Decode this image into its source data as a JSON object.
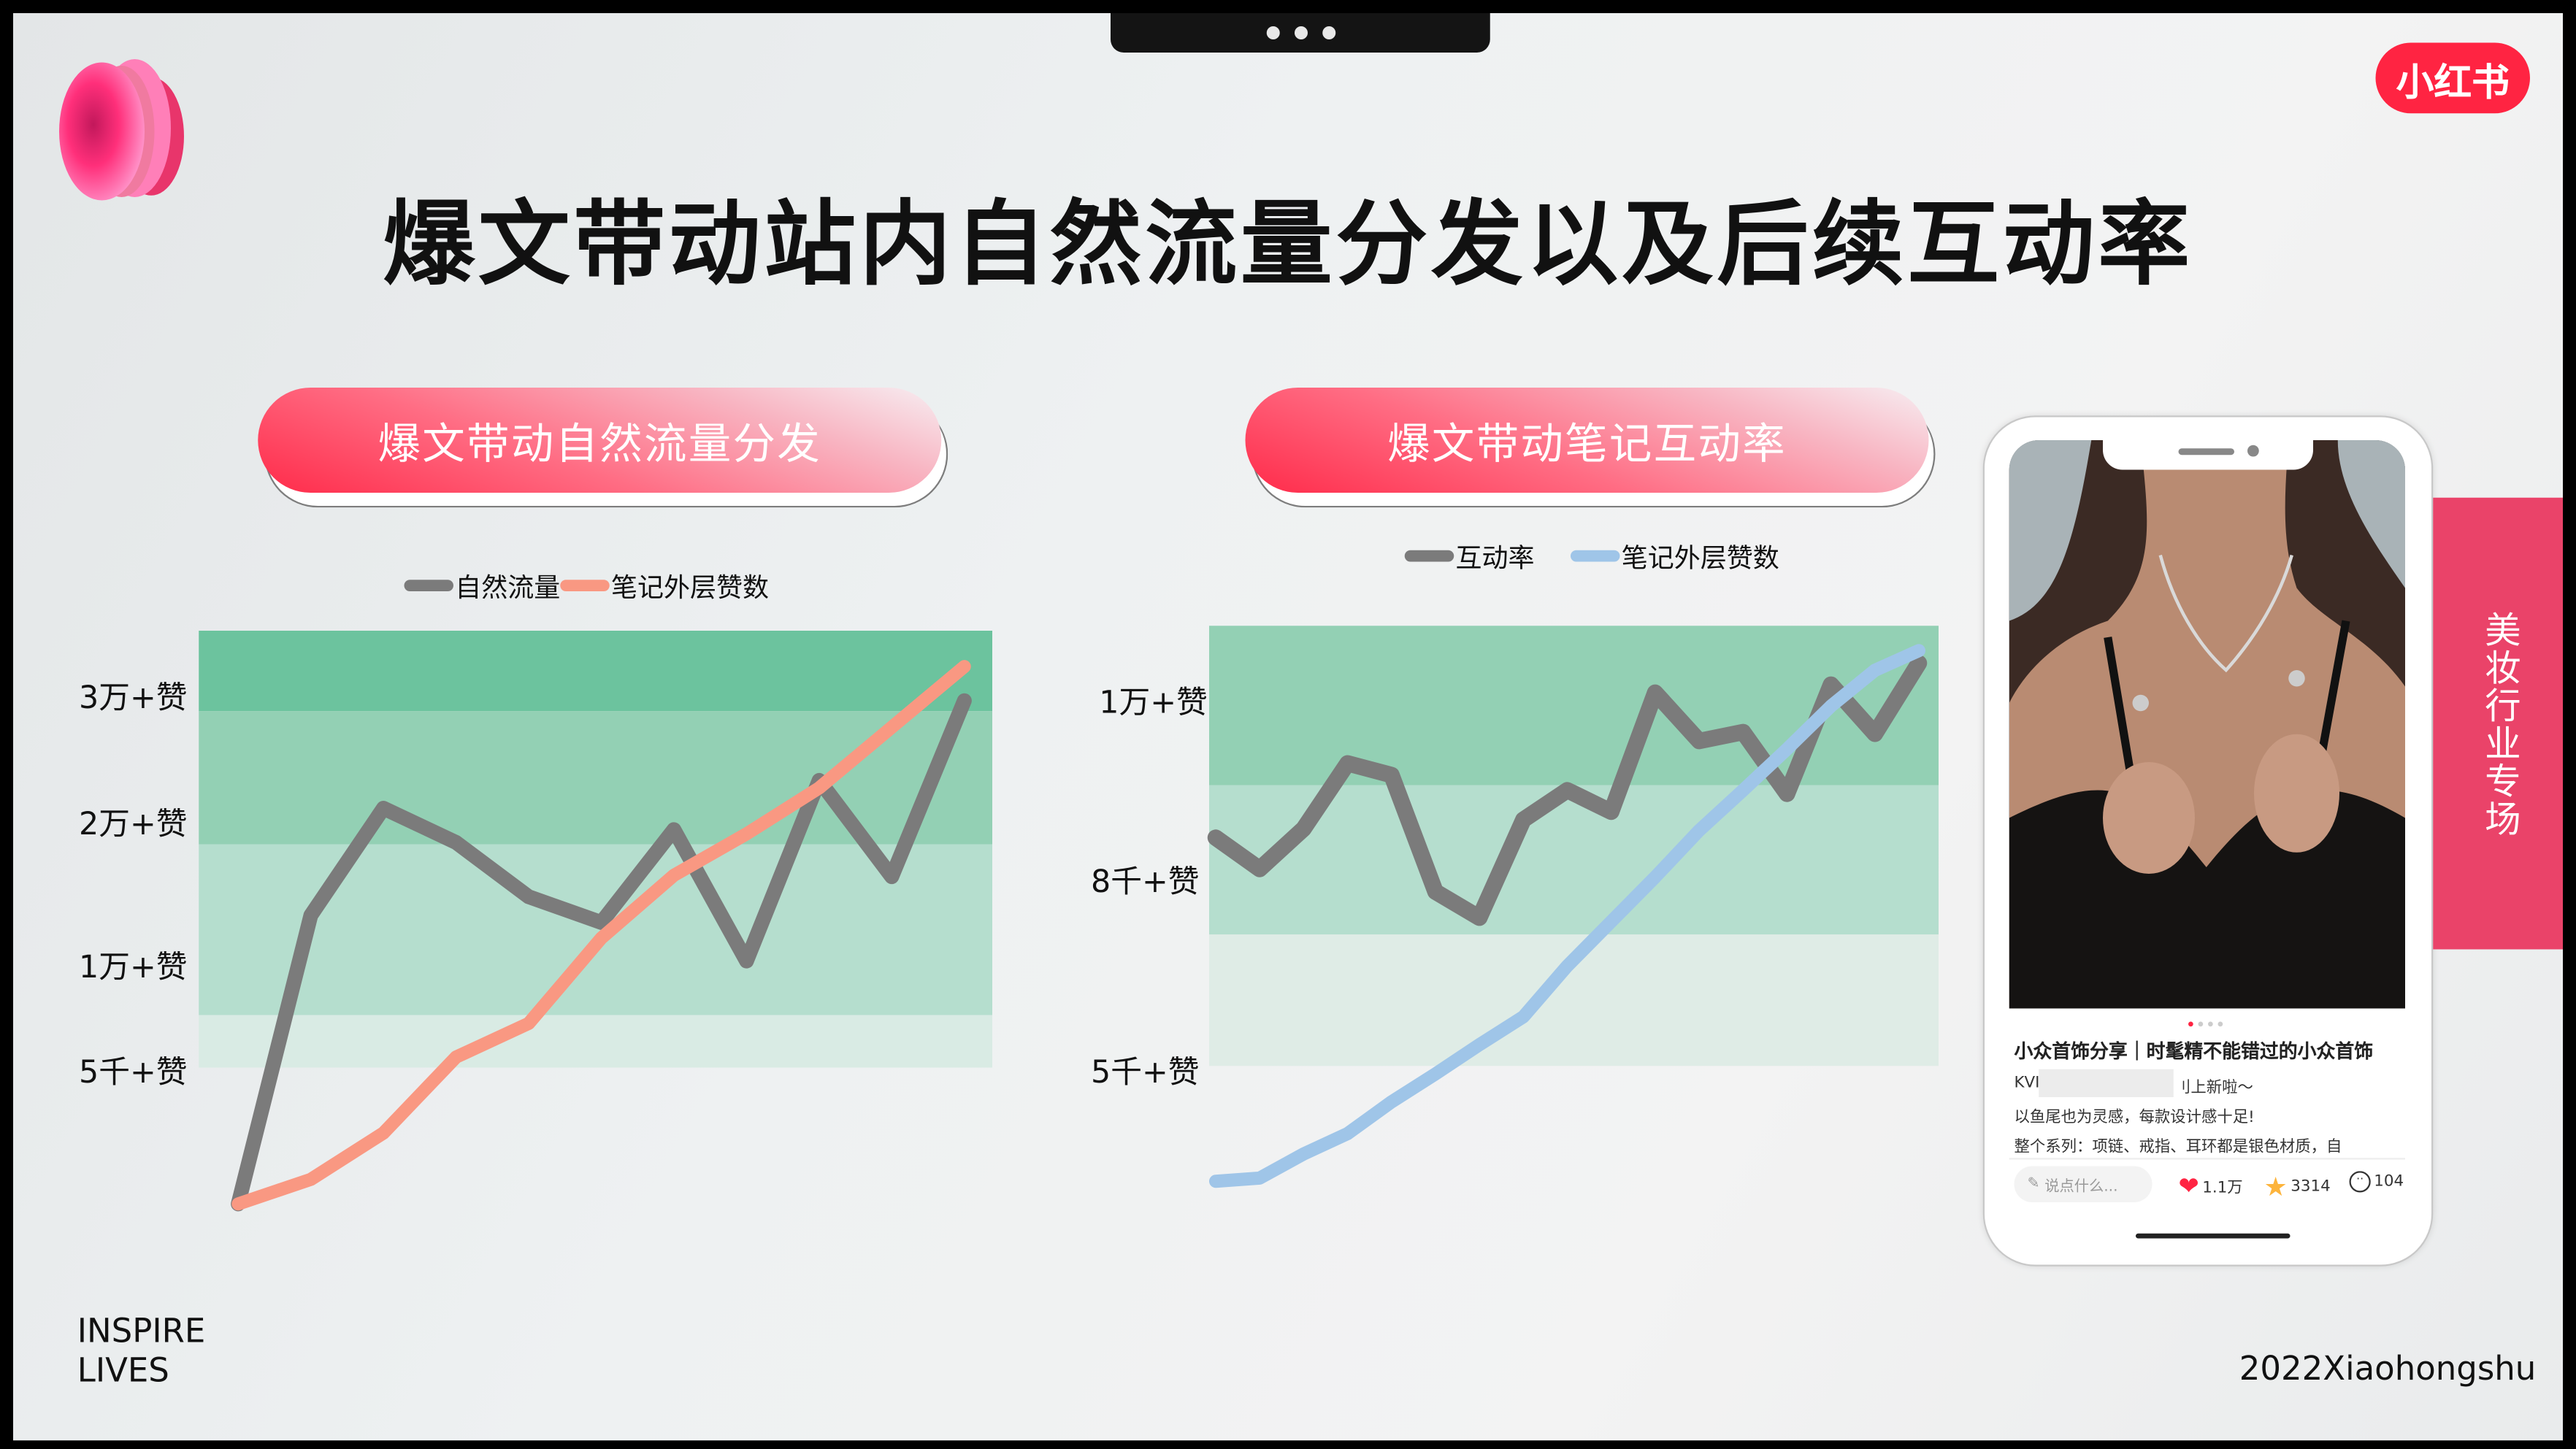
{
  "title": "爆文带动站内自然流量分发以及后续互动率",
  "brand_logo": "小红书",
  "side_tab": "美妆行业专场",
  "footer": {
    "left_line1": "INSPIRE",
    "left_line2": "LIVES",
    "right": "2022Xiaohongshu"
  },
  "colors": {
    "accent": "#ff2442",
    "side_tab": "#ea4369",
    "band_dark": "#6cc39e",
    "band_mid": "#93d0b4",
    "band_light": "#b5dece",
    "band_faint": "#d9ebe4"
  },
  "chart_data": [
    {
      "type": "line",
      "header": "爆文带动自然流量分发",
      "y_ticks": [
        "3万+赞",
        "2万+赞",
        "1万+赞",
        "5千+赞"
      ],
      "y_tick_values": [
        30000,
        20000,
        10000,
        5000
      ],
      "grid": false,
      "legend_position": "top",
      "series": [
        {
          "name": "自然流量",
          "color": "#7b7b7b",
          "values": [
            0,
            13300,
            20900,
            18400,
            14600,
            12800,
            19300,
            10100,
            23100,
            16000,
            29400
          ]
        },
        {
          "name": "笔记外层赞数",
          "color": "#f99882",
          "values": [
            0,
            900,
            2600,
            5500,
            7100,
            11700,
            16100,
            19000,
            22500,
            27300,
            32100
          ]
        }
      ]
    },
    {
      "type": "line",
      "header": "爆文带动笔记互动率",
      "y_ticks": [
        "1万+赞",
        "8千+赞",
        "5千+赞"
      ],
      "y_tick_values": [
        10000,
        8000,
        5000
      ],
      "grid": false,
      "legend_position": "top",
      "series": [
        {
          "name": "互动率",
          "color": "#7b7b7b",
          "values": [
            8440,
            8090,
            8540,
            9270,
            9140,
            7770,
            7360,
            8640,
            8970,
            8730,
            10060,
            9520,
            9620,
            8930,
            10150,
            9600,
            10390
          ]
        },
        {
          "name": "笔记外层赞数",
          "color": "#9fc5e8",
          "values": [
            3210,
            3260,
            3640,
            3960,
            4460,
            4900,
            5360,
            5800,
            6600,
            7300,
            8000,
            8520,
            8970,
            9430,
            9910,
            10310,
            10530
          ]
        }
      ]
    }
  ],
  "phone": {
    "note_title": "小众首饰分享｜时髦精不能错过的小众首饰",
    "line1_start": "KVI",
    "line1_end": "刂上新啦～",
    "line2": "以鱼尾也为灵感，每款设计感十足!",
    "line3": "整个系列：项链、戒指、耳环都是银色材质，自",
    "comment_placeholder": "说点什么...",
    "likes": "1.1万",
    "favorites": "3314",
    "comments": "104",
    "icons": [
      "pencil-icon",
      "heart-icon",
      "star-icon",
      "comment-icon"
    ],
    "carousel_index": 1,
    "carousel_count": 5
  }
}
